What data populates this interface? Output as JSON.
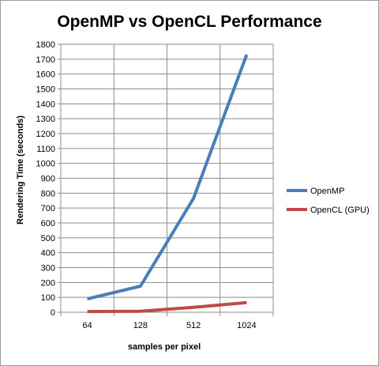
{
  "chart_data": {
    "type": "line",
    "title": "OpenMP vs OpenCL Performance",
    "xlabel": "samples per pixel",
    "ylabel": "Rendering Time (seconds)",
    "categories": [
      "64",
      "128",
      "512",
      "1024"
    ],
    "ylim": [
      0,
      1800
    ],
    "yticks": [
      0,
      100,
      200,
      300,
      400,
      500,
      600,
      700,
      800,
      900,
      1000,
      1100,
      1200,
      1300,
      1400,
      1500,
      1600,
      1700,
      1800
    ],
    "grid": true,
    "legend": "right",
    "series": [
      {
        "name": "OpenMP",
        "color": "#4a7ebb",
        "values": [
          90,
          175,
          765,
          1730
        ]
      },
      {
        "name": "OpenCL (GPU)",
        "color": "#be4b48",
        "values": [
          5,
          7,
          33,
          65
        ]
      }
    ]
  }
}
